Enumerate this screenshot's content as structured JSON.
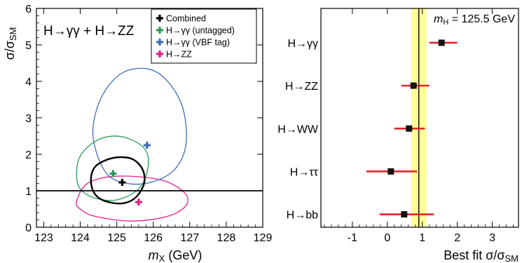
{
  "chart_data": [
    {
      "type": "contour",
      "annotation": "H→γγ + H→ZZ",
      "xlabel": "m",
      "xlabel_sub": "X",
      "xlabel_unit": " (GeV)",
      "ylabel": "σ/σ",
      "ylabel_sub": "SM",
      "xlim": [
        122.8,
        129.0
      ],
      "ylim": [
        0,
        6
      ],
      "xticks": [
        123,
        124,
        125,
        126,
        127,
        128,
        129
      ],
      "yticks": [
        0,
        1,
        2,
        3,
        4,
        5,
        6
      ],
      "reference_line_y": 1,
      "legend": {
        "position": "top-right",
        "entries": [
          {
            "label": "Combined",
            "color": "#000000"
          },
          {
            "label": "H→γγ (untagged)",
            "color": "#2a9a55"
          },
          {
            "label": "H→γγ (VBF tag)",
            "color": "#3f6fb5"
          },
          {
            "label": "H→ZZ",
            "color": "#e0218a"
          }
        ]
      },
      "series": [
        {
          "best_fit": [
            125.15,
            1.23
          ],
          "color": "#000000",
          "contour": [
            [
              124.3,
              1.4
            ],
            [
              124.45,
              1.7
            ],
            [
              124.9,
              1.9
            ],
            [
              125.4,
              1.88
            ],
            [
              125.7,
              1.6
            ],
            [
              125.75,
              1.2
            ],
            [
              125.5,
              0.8
            ],
            [
              125.1,
              0.65
            ],
            [
              124.6,
              0.75
            ],
            [
              124.35,
              1.0
            ]
          ]
        },
        {
          "best_fit": [
            124.9,
            1.47
          ],
          "color": "#2a9a55",
          "contour": [
            [
              123.9,
              1.45
            ],
            [
              124.0,
              1.95
            ],
            [
              124.4,
              2.35
            ],
            [
              124.9,
              2.5
            ],
            [
              125.4,
              2.4
            ],
            [
              125.8,
              2.1
            ],
            [
              125.85,
              1.6
            ],
            [
              125.6,
              1.05
            ],
            [
              125.0,
              0.75
            ],
            [
              124.4,
              0.8
            ],
            [
              124.0,
              1.05
            ]
          ]
        },
        {
          "best_fit": [
            125.83,
            2.25
          ],
          "color": "#3f6fb5",
          "contour": [
            [
              124.35,
              2.5
            ],
            [
              124.55,
              3.5
            ],
            [
              125.1,
              4.2
            ],
            [
              125.8,
              4.35
            ],
            [
              126.35,
              4.05
            ],
            [
              126.8,
              3.3
            ],
            [
              126.9,
              2.3
            ],
            [
              126.6,
              1.6
            ],
            [
              126.0,
              1.25
            ],
            [
              125.3,
              1.2
            ],
            [
              124.7,
              1.5
            ]
          ]
        },
        {
          "best_fit": [
            125.6,
            0.69
          ],
          "color": "#e0218a",
          "contour": [
            [
              123.9,
              0.7
            ],
            [
              124.2,
              1.2
            ],
            [
              125.0,
              1.4
            ],
            [
              126.2,
              1.3
            ],
            [
              126.85,
              0.95
            ],
            [
              126.9,
              0.6
            ],
            [
              126.4,
              0.3
            ],
            [
              125.4,
              0.17
            ],
            [
              124.4,
              0.3
            ],
            [
              124.0,
              0.5
            ]
          ]
        }
      ]
    },
    {
      "type": "dot_errorbar",
      "annotation_label": "m",
      "annotation_sub": "H",
      "annotation_value": " = 125.5 GeV",
      "xlabel": "Best fit σ/σ",
      "xlabel_sub": "SM",
      "xlim": [
        -1.9,
        3.75
      ],
      "xticks": [
        -1,
        0,
        1,
        2,
        3
      ],
      "reference_line_x": 0.9,
      "band": [
        0.68,
        1.12
      ],
      "categories": [
        "H→γγ",
        "H→ZZ",
        "H→WW",
        "H→ττ",
        "H→bb"
      ],
      "values": [
        1.55,
        0.75,
        0.62,
        0.1,
        0.48
      ],
      "errors_low": [
        0.35,
        0.35,
        0.42,
        0.7,
        0.7
      ],
      "errors_high": [
        0.45,
        0.45,
        0.45,
        0.75,
        0.85
      ]
    }
  ],
  "colors": {
    "axis": "#000000",
    "band": "#ffff9a",
    "error_bar": "#e0262a"
  }
}
